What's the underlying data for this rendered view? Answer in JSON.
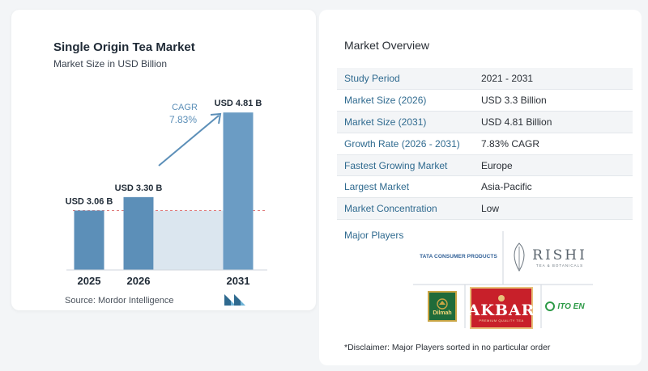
{
  "chart": {
    "title": "Single Origin Tea Market",
    "subtitle": "Market Size in USD Billion",
    "cagr_label": "CAGR",
    "cagr_value": "7.83%",
    "source": "Source:  Mordor Intelligence"
  },
  "chart_data": {
    "type": "bar",
    "title": "Single Origin Tea Market",
    "subtitle": "Market Size in USD Billion",
    "categories": [
      "2025",
      "2026",
      "2031"
    ],
    "values": [
      3.06,
      3.3,
      4.81
    ],
    "value_labels": [
      "USD 3.06 B",
      "USD 3.30 B",
      "USD 4.81 B"
    ],
    "annotation": {
      "label": "CAGR",
      "value": "7.83%"
    },
    "grid": false,
    "colors": {
      "bar": "#5c8fb8",
      "bar_highlight": "#6b9cc4",
      "band": "#dbe6ef",
      "arrow": "#5c8fb8"
    }
  },
  "overview": {
    "title": "Market Overview",
    "rows": [
      {
        "key": "Study Period",
        "value": "2021 - 2031"
      },
      {
        "key": "Market Size (2026)",
        "value": "USD 3.3 Billion"
      },
      {
        "key": "Market Size (2031)",
        "value": "USD 4.81 Billion"
      },
      {
        "key": "Growth Rate (2026 - 2031)",
        "value": "7.83% CAGR"
      },
      {
        "key": "Fastest Growing Market",
        "value": "Europe"
      },
      {
        "key": "Largest Market",
        "value": "Asia-Pacific"
      },
      {
        "key": "Market Concentration",
        "value": "Low"
      }
    ]
  },
  "players": {
    "title": "Major Players",
    "logos": {
      "tata": "TATA CONSUMER PRODUCTS",
      "rishi": "RISHI",
      "rishi_sub": "TEA & BOTANICALS",
      "dilmah": "Dilmah",
      "akbar": "AKBAR",
      "akbar_sub": "PREMIUM QUALITY TEA",
      "itoen": "ITO EN"
    },
    "disclaimer": "*Disclaimer: Major Players sorted in no particular order"
  }
}
